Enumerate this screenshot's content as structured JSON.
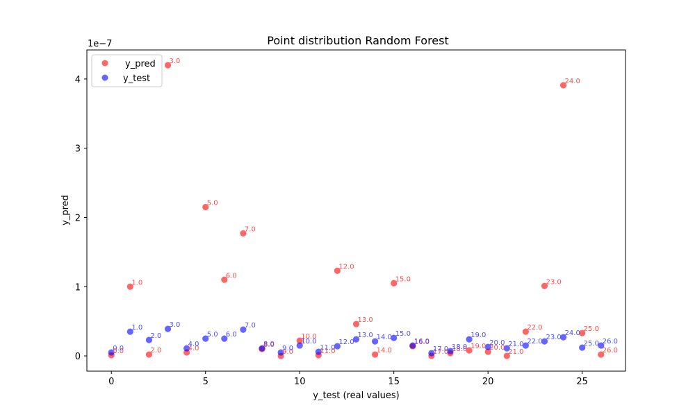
{
  "chart_data": {
    "type": "scatter",
    "title": "Point distribution Random Forest",
    "xlabel": "y_test (real values)",
    "ylabel": "y_pred",
    "y_offset_label": "1e−7",
    "xlim": [
      -1.3,
      27.3
    ],
    "ylim": [
      -2.2e-08,
      4.42e-07
    ],
    "x_ticks": [
      0,
      5,
      10,
      15,
      20,
      25
    ],
    "x_tick_labels": [
      "0",
      "5",
      "10",
      "15",
      "20",
      "25"
    ],
    "y_ticks": [
      0,
      1e-07,
      2e-07,
      3e-07,
      4e-07
    ],
    "y_tick_labels": [
      "0",
      "1",
      "2",
      "3",
      "4"
    ],
    "grid": false,
    "legend_position": "upper-left",
    "series": [
      {
        "name": "y_pred",
        "color": "#ff0000",
        "label_color": "#ff4d4d",
        "x": [
          0,
          1,
          2,
          3,
          4,
          5,
          6,
          7,
          8,
          9,
          10,
          11,
          12,
          13,
          14,
          15,
          16,
          17,
          18,
          19,
          20,
          21,
          22,
          23,
          24,
          25,
          26
        ],
        "y": [
          1e-09,
          1e-07,
          2e-09,
          4.2e-07,
          5e-09,
          2.15e-07,
          1.1e-07,
          1.77e-07,
          1e-08,
          0,
          2.2e-08,
          1e-09,
          1.23e-07,
          4.6e-08,
          2e-09,
          1.05e-07,
          1.4e-08,
          0,
          4e-09,
          8e-09,
          6e-09,
          0,
          3.5e-08,
          1.01e-07,
          3.91e-07,
          3.3e-08,
          2e-09
        ],
        "annotations": [
          "0.0",
          "1.0",
          "2.0",
          "3.0",
          "4.0",
          "5.0",
          "6.0",
          "7.0",
          "8.0",
          "9.0",
          "10.0",
          "11.0",
          "12.0",
          "13.0",
          "14.0",
          "15.0",
          "16.0",
          "17.0",
          "18.0",
          "19.0",
          "20.0",
          "21.0",
          "22.0",
          "23.0",
          "24.0",
          "25.0",
          "26.0"
        ]
      },
      {
        "name": "y_test",
        "color": "#0000ff",
        "label_color": "#4d4dff",
        "x": [
          0,
          1,
          2,
          3,
          4,
          5,
          6,
          7,
          8,
          9,
          10,
          11,
          12,
          13,
          14,
          15,
          16,
          17,
          18,
          19,
          20,
          21,
          22,
          23,
          24,
          25,
          26
        ],
        "y": [
          5e-09,
          3.5e-08,
          2.3e-08,
          3.9e-08,
          1.1e-08,
          2.5e-08,
          2.5e-08,
          3.8e-08,
          1.1e-08,
          5e-09,
          1.5e-08,
          6e-09,
          1.4e-08,
          2.4e-08,
          2.1e-08,
          2.6e-08,
          1.5e-08,
          4e-09,
          7e-09,
          2.4e-08,
          1.3e-08,
          1.1e-08,
          1.5e-08,
          2.1e-08,
          2.7e-08,
          1.2e-08,
          1.5e-08
        ],
        "annotations": [
          "0.0",
          "1.0",
          "2.0",
          "3.0",
          "4.0",
          "5.0",
          "6.0",
          "7.0",
          "8.0",
          "9.0",
          "10.0",
          "11.0",
          "12.0",
          "13.0",
          "14.0",
          "15.0",
          "16.0",
          "17.0",
          "18.0",
          "19.0",
          "20.0",
          "21.0",
          "22.0",
          "23.0",
          "24.0",
          "25.0",
          "26.0"
        ]
      }
    ]
  }
}
